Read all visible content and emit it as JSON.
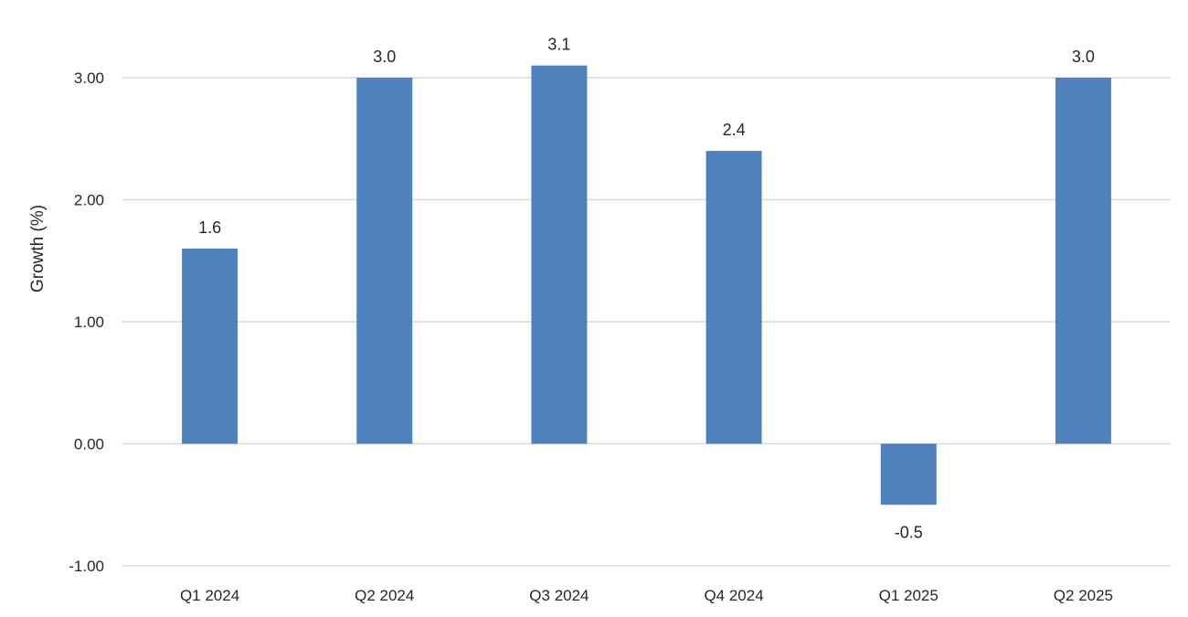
{
  "chart_data": {
    "type": "bar",
    "categories": [
      "Q1 2024",
      "Q2 2024",
      "Q3 2024",
      "Q4 2024",
      "Q1 2025",
      "Q2 2025"
    ],
    "values": [
      1.6,
      3.0,
      3.1,
      2.4,
      -0.5,
      3.0
    ],
    "data_labels": [
      "1.6",
      "3.0",
      "3.1",
      "2.4",
      "-0.5",
      "3.0"
    ],
    "ylabel": "Growth (%)",
    "ylim": [
      -1,
      3
    ],
    "yticks": [
      -1,
      0,
      1,
      2,
      3
    ],
    "ytick_labels": [
      "-1.00",
      "0.00",
      "1.00",
      "2.00",
      "3.00"
    ],
    "grid": true,
    "legend": "none",
    "bar_color": "#4f81bd"
  }
}
